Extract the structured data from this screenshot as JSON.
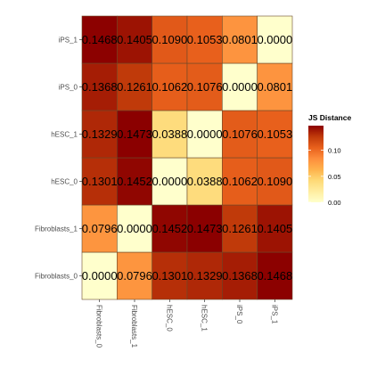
{
  "chart_data": {
    "type": "heatmap",
    "x_categories": [
      "Fibroblasts_0",
      "Fibroblasts_1",
      "hESC_0",
      "hESC_1",
      "iPS_0",
      "iPS_1"
    ],
    "y_categories": [
      "Fibroblasts_0",
      "Fibroblasts_1",
      "hESC_0",
      "hESC_1",
      "iPS_0",
      "iPS_1"
    ],
    "values": [
      [
        0.0,
        0.0796,
        0.1301,
        0.1329,
        0.1368,
        0.1468
      ],
      [
        0.0796,
        0.0,
        0.1452,
        0.1473,
        0.1261,
        0.1405
      ],
      [
        0.1301,
        0.1452,
        0.0,
        0.0388,
        0.1062,
        0.109
      ],
      [
        0.1329,
        0.1473,
        0.0388,
        0.0,
        0.1076,
        0.1053
      ],
      [
        0.1368,
        0.1261,
        0.1062,
        0.1076,
        0.0,
        0.0801
      ],
      [
        0.1468,
        0.1405,
        0.109,
        0.1053,
        0.0801,
        0.0
      ]
    ],
    "value_labels": [
      [
        "0.0000",
        "0.0796",
        "0.1301",
        "0.1329",
        "0.1368",
        "0.1468"
      ],
      [
        "0.0796",
        "0.0000",
        "0.1452",
        "0.1473",
        "0.1261",
        "0.1405"
      ],
      [
        "0.1301",
        "0.1452",
        "0.0000",
        "0.0388",
        "0.1062",
        "0.1090"
      ],
      [
        "0.1329",
        "0.1473",
        "0.0388",
        "0.0000",
        "0.1076",
        "0.1053"
      ],
      [
        "0.1368",
        "0.1261",
        "0.1062",
        "0.1076",
        "0.0000",
        "0.0801"
      ],
      [
        "0.1468",
        "0.1405",
        "0.1090",
        "0.1053",
        "0.0801",
        "0.0000"
      ]
    ],
    "legend": {
      "title": "JS Distance",
      "ticks": [
        0.0,
        0.05,
        0.1
      ],
      "tick_labels": [
        "0.00",
        "0.05",
        "0.10"
      ],
      "range": [
        0,
        0.1473
      ],
      "placement": "right"
    },
    "color_scale": [
      "#ffffcc",
      "#ffeda0",
      "#fed976",
      "#feb24c",
      "#fd8d3c",
      "#e8601c",
      "#c03a0a",
      "#8b0000"
    ],
    "grid": false,
    "title": "",
    "xlabel": "",
    "ylabel": ""
  }
}
